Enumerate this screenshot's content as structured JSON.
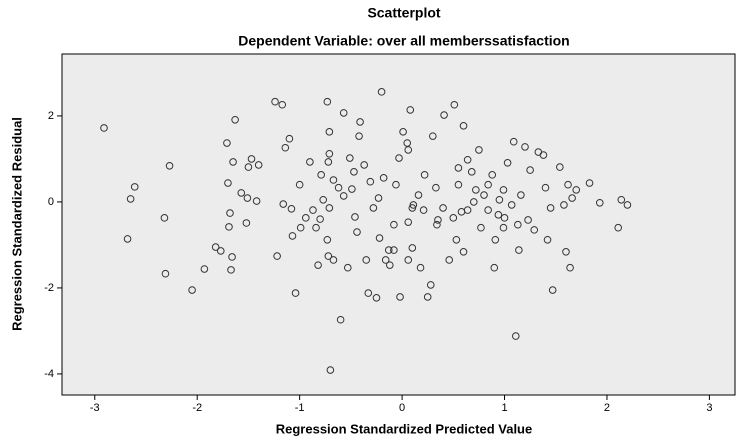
{
  "chart_data": {
    "type": "scatter",
    "title": "Scatterplot",
    "subtitle": "Dependent Variable: over all memberssatisfaction",
    "x_label": "Regression Standardized Predicted Value",
    "y_label": "Regression Standardized Residual",
    "marker_color": "#333333",
    "background": "#ececec",
    "xlim": [
      -3.32,
      3.25
    ],
    "ylim": [
      -4.49,
      3.44
    ],
    "xticks": [
      -3,
      -2,
      -1,
      0,
      1,
      2,
      3
    ],
    "yticks": [
      -4,
      -2,
      0,
      2
    ],
    "x": [
      -2.91,
      -2.61,
      -2.65,
      -2.68,
      -2.27,
      -2.32,
      -2.31,
      -2.05,
      -1.93,
      -1.82,
      -1.77,
      -1.71,
      -1.63,
      -1.65,
      -1.7,
      -1.68,
      -1.69,
      -1.66,
      -1.67,
      -1.57,
      -1.51,
      -1.5,
      -1.47,
      -1.42,
      -1.4,
      -1.52,
      -1.24,
      -1.17,
      -1.22,
      -1.14,
      -1.1,
      -1.16,
      -1.08,
      -1.07,
      -1.04,
      -1.0,
      -0.99,
      -0.94,
      -0.9,
      -0.87,
      -0.82,
      -0.8,
      -0.79,
      -0.77,
      -0.73,
      -0.71,
      -0.71,
      -0.72,
      -0.67,
      -0.71,
      -0.73,
      -0.72,
      -0.67,
      -0.7,
      -0.6,
      -0.57,
      -0.53,
      -0.51,
      -0.49,
      -0.46,
      -0.44,
      -0.42,
      -0.41,
      -0.37,
      -0.35,
      -0.33,
      -0.31,
      -0.28,
      -0.25,
      -0.22,
      -0.2,
      -0.18,
      -0.16,
      -0.13,
      -0.12,
      -0.08,
      -0.03,
      -0.02,
      0.01,
      0.05,
      0.06,
      0.06,
      0.06,
      0.08,
      0.1,
      0.1,
      0.18,
      0.22,
      0.25,
      0.28,
      0.3,
      0.33,
      0.34,
      0.41,
      0.46,
      0.51,
      0.53,
      0.55,
      0.58,
      0.6,
      0.6,
      0.64,
      0.68,
      0.7,
      0.75,
      0.77,
      0.8,
      0.84,
      0.88,
      0.9,
      0.91,
      0.95,
      0.99,
      1.0,
      1.03,
      1.07,
      1.09,
      1.11,
      1.14,
      1.16,
      1.2,
      1.23,
      1.25,
      1.29,
      1.33,
      1.38,
      1.4,
      1.42,
      1.45,
      1.47,
      1.54,
      1.58,
      1.6,
      1.62,
      1.64,
      1.66,
      1.7,
      1.83,
      1.93,
      2.11,
      2.14,
      2.2,
      -0.06,
      0.11,
      0.16,
      0.4,
      0.5,
      0.64,
      0.84,
      0.94,
      0.99,
      1.13,
      -0.23,
      -0.47,
      -0.62,
      -0.84,
      -0.57,
      0.21,
      0.55,
      0.35,
      0.72,
      -0.08
    ],
    "y": [
      1.72,
      0.35,
      0.07,
      -0.86,
      0.84,
      -0.37,
      -1.67,
      -2.05,
      -1.56,
      -1.05,
      -1.14,
      1.37,
      1.91,
      0.93,
      0.44,
      -0.26,
      -0.58,
      -1.28,
      -1.58,
      0.21,
      0.09,
      0.81,
      1.0,
      0.02,
      0.86,
      -0.49,
      2.33,
      2.26,
      -1.26,
      1.26,
      1.47,
      -0.05,
      -0.16,
      -0.79,
      -2.12,
      0.4,
      -0.6,
      -0.37,
      0.93,
      -0.19,
      -1.47,
      -0.4,
      0.63,
      0.05,
      2.33,
      1.12,
      1.63,
      0.93,
      0.51,
      -0.14,
      -0.88,
      -1.26,
      -1.35,
      -3.91,
      -2.74,
      2.07,
      -1.53,
      1.02,
      0.3,
      -0.35,
      -0.7,
      1.53,
      1.86,
      0.86,
      -1.35,
      -2.12,
      0.47,
      -0.14,
      -2.23,
      -0.84,
      2.56,
      0.56,
      -1.35,
      -1.12,
      -1.47,
      -0.53,
      1.02,
      -2.21,
      1.63,
      1.37,
      1.21,
      -0.47,
      -1.35,
      2.14,
      -0.14,
      -1.07,
      -1.53,
      0.63,
      -2.21,
      -1.93,
      1.53,
      0.33,
      -0.53,
      2.02,
      -1.35,
      2.26,
      -0.88,
      0.4,
      -0.23,
      1.77,
      -1.16,
      0.98,
      0.7,
      0.0,
      1.21,
      -0.6,
      0.16,
      0.4,
      0.63,
      -1.53,
      -0.88,
      0.05,
      0.28,
      -0.37,
      0.91,
      -0.07,
      1.4,
      -3.12,
      -1.12,
      0.16,
      1.28,
      -0.42,
      0.74,
      -0.65,
      1.16,
      1.09,
      0.33,
      -0.88,
      -0.14,
      -2.05,
      0.81,
      -0.07,
      -1.16,
      0.4,
      -1.53,
      0.09,
      0.28,
      0.44,
      -0.02,
      -0.6,
      0.05,
      -0.07,
      0.4,
      -0.07,
      0.16,
      -0.14,
      -0.37,
      -0.19,
      -0.19,
      -0.3,
      -0.6,
      -0.53,
      0.09,
      0.7,
      0.33,
      -0.6,
      0.14,
      -0.19,
      0.79,
      -0.42,
      0.28,
      -1.12
    ]
  }
}
